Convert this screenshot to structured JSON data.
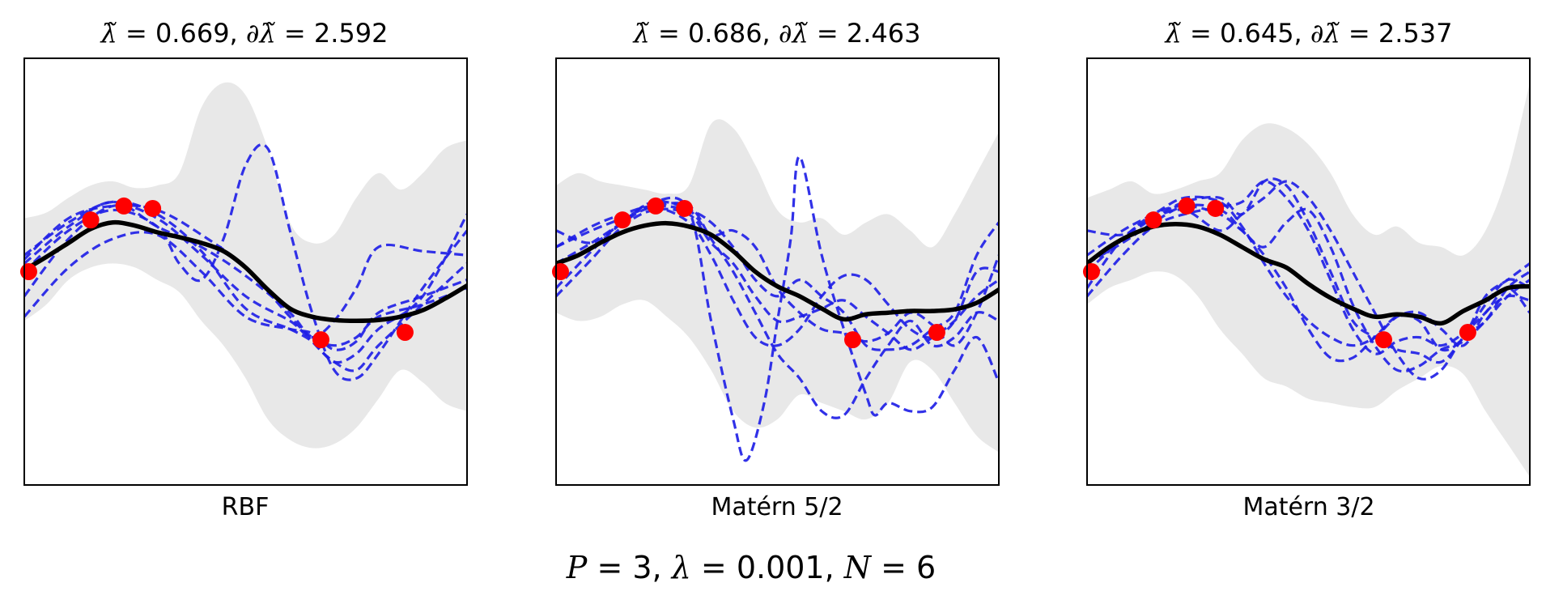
{
  "figure": {
    "suptitle": {
      "p_label": "P",
      "p_value": "3",
      "lambda_label": "λ",
      "lambda_value": "0.001",
      "n_label": "N",
      "n_value": "6"
    }
  },
  "colors": {
    "band": "#e8e8e8",
    "samples": "#2020e6",
    "mean": "#000000",
    "points": "#ff0000"
  },
  "chart_data": [
    {
      "type": "line",
      "title": {
        "lambda_tilde": "0.669",
        "partial_lambda_tilde": "2.592"
      },
      "xlabel": "RBF",
      "xlim": [
        0,
        1
      ],
      "ylim": [
        -2.6,
        2.6
      ],
      "grid": false,
      "observations": {
        "x": [
          0.01,
          0.15,
          0.225,
          0.29,
          0.67,
          0.86
        ],
        "y": [
          0.0,
          0.63,
          0.8,
          0.77,
          -0.83,
          -0.74
        ]
      },
      "mean": {
        "x": [
          0,
          0.05,
          0.1,
          0.15,
          0.2,
          0.25,
          0.3,
          0.35,
          0.4,
          0.45,
          0.5,
          0.55,
          0.6,
          0.65,
          0.7,
          0.75,
          0.8,
          0.85,
          0.9,
          0.95,
          1.0
        ],
        "y": [
          0.02,
          0.18,
          0.35,
          0.52,
          0.6,
          0.56,
          0.48,
          0.42,
          0.35,
          0.25,
          0.05,
          -0.22,
          -0.45,
          -0.55,
          -0.59,
          -0.6,
          -0.59,
          -0.55,
          -0.47,
          -0.33,
          -0.17
        ]
      },
      "band": {
        "x": [
          0,
          0.05,
          0.1,
          0.15,
          0.2,
          0.25,
          0.3,
          0.35,
          0.4,
          0.45,
          0.5,
          0.55,
          0.6,
          0.65,
          0.7,
          0.75,
          0.8,
          0.85,
          0.9,
          0.95,
          1.0
        ],
        "upper": [
          0.65,
          0.72,
          0.9,
          1.05,
          1.1,
          1.02,
          1.05,
          1.2,
          2.0,
          2.3,
          2.15,
          1.5,
          0.6,
          0.35,
          0.45,
          0.9,
          1.2,
          1.0,
          1.2,
          1.5,
          1.6
        ],
        "lower": [
          -0.6,
          -0.4,
          -0.1,
          0.05,
          0.1,
          0.05,
          -0.1,
          -0.25,
          -0.6,
          -0.9,
          -1.3,
          -1.8,
          -2.05,
          -2.15,
          -2.1,
          -1.9,
          -1.55,
          -1.2,
          -1.35,
          -1.6,
          -1.7
        ]
      },
      "samples": [
        {
          "x": [
            0,
            0.1,
            0.2,
            0.3,
            0.35,
            0.4,
            0.45,
            0.5,
            0.55,
            0.6,
            0.65,
            0.7,
            0.75,
            0.8,
            0.9,
            1.0
          ],
          "y": [
            0.0,
            0.5,
            0.75,
            0.55,
            0.1,
            -0.1,
            0.4,
            1.3,
            1.5,
            0.5,
            -0.5,
            -1.2,
            -1.3,
            -1.0,
            -0.2,
            0.5
          ]
        },
        {
          "x": [
            0,
            0.1,
            0.2,
            0.3,
            0.4,
            0.5,
            0.6,
            0.65,
            0.7,
            0.75,
            0.8,
            0.9,
            1.0
          ],
          "y": [
            0.1,
            0.55,
            0.85,
            0.55,
            0.3,
            -0.05,
            -0.5,
            -0.85,
            -1.1,
            -1.2,
            -0.9,
            -0.4,
            0.1
          ]
        },
        {
          "x": [
            0,
            0.1,
            0.2,
            0.3,
            0.4,
            0.5,
            0.6,
            0.65,
            0.7,
            0.75,
            0.8,
            0.9,
            1.0
          ],
          "y": [
            -0.3,
            0.4,
            0.8,
            0.65,
            0.2,
            -0.3,
            -0.6,
            -0.8,
            -0.6,
            -0.2,
            0.3,
            0.25,
            0.2
          ]
        },
        {
          "x": [
            0,
            0.1,
            0.2,
            0.3,
            0.4,
            0.5,
            0.6,
            0.65,
            0.7,
            0.75,
            0.8,
            0.9,
            1.0
          ],
          "y": [
            0.2,
            0.6,
            0.85,
            0.7,
            0.25,
            -0.45,
            -0.7,
            -0.85,
            -1.1,
            -1.0,
            -0.7,
            -0.3,
            0.7
          ]
        },
        {
          "x": [
            0,
            0.1,
            0.2,
            0.3,
            0.4,
            0.5,
            0.6,
            0.65,
            0.7,
            0.75,
            0.8,
            0.9,
            1.0
          ],
          "y": [
            -0.55,
            0.05,
            0.4,
            0.45,
            0.0,
            -0.55,
            -0.7,
            -0.75,
            -0.95,
            -0.85,
            -0.5,
            -0.3,
            -0.1
          ]
        },
        {
          "x": [
            0,
            0.1,
            0.2,
            0.3,
            0.4,
            0.5,
            0.6,
            0.65,
            0.7,
            0.75,
            0.8,
            0.9,
            1.0
          ],
          "y": [
            0.15,
            0.65,
            0.8,
            0.75,
            0.45,
            0.05,
            -0.55,
            -0.8,
            -0.9,
            -0.8,
            -0.55,
            -0.4,
            -0.2
          ]
        }
      ]
    },
    {
      "type": "line",
      "title": {
        "lambda_tilde": "0.686",
        "partial_lambda_tilde": "2.463"
      },
      "xlabel": "Matérn 5/2",
      "xlim": [
        0,
        1
      ],
      "ylim": [
        -2.6,
        2.6
      ],
      "grid": false,
      "observations": {
        "x": [
          0.01,
          0.15,
          0.225,
          0.29,
          0.67,
          0.86
        ],
        "y": [
          0.0,
          0.63,
          0.8,
          0.77,
          -0.83,
          -0.74
        ]
      },
      "mean": {
        "x": [
          0,
          0.05,
          0.1,
          0.15,
          0.2,
          0.25,
          0.3,
          0.35,
          0.4,
          0.45,
          0.5,
          0.55,
          0.6,
          0.65,
          0.7,
          0.75,
          0.8,
          0.85,
          0.9,
          0.95,
          1.0
        ],
        "y": [
          0.1,
          0.2,
          0.35,
          0.48,
          0.56,
          0.59,
          0.55,
          0.45,
          0.25,
          0.0,
          -0.18,
          -0.3,
          -0.45,
          -0.58,
          -0.52,
          -0.5,
          -0.48,
          -0.48,
          -0.46,
          -0.38,
          -0.22
        ]
      },
      "band": {
        "x": [
          0,
          0.05,
          0.1,
          0.15,
          0.2,
          0.25,
          0.3,
          0.35,
          0.4,
          0.45,
          0.5,
          0.55,
          0.6,
          0.65,
          0.7,
          0.75,
          0.8,
          0.85,
          0.9,
          0.95,
          1.0
        ],
        "upper": [
          1.05,
          1.2,
          1.1,
          1.05,
          1.0,
          0.95,
          1.05,
          1.8,
          1.75,
          1.3,
          0.75,
          0.6,
          0.65,
          0.45,
          0.6,
          0.7,
          0.5,
          0.3,
          0.7,
          1.2,
          1.7
        ],
        "lower": [
          -0.5,
          -0.6,
          -0.55,
          -0.4,
          -0.35,
          -0.55,
          -0.8,
          -1.2,
          -1.7,
          -1.9,
          -1.8,
          -1.5,
          -1.6,
          -1.7,
          -1.8,
          -1.6,
          -1.1,
          -1.2,
          -1.6,
          -2.0,
          -2.2
        ]
      },
      "samples": [
        {
          "x": [
            0,
            0.08,
            0.15,
            0.22,
            0.3,
            0.35,
            0.4,
            0.43,
            0.47,
            0.5,
            0.53,
            0.55,
            0.6,
            0.65,
            0.7,
            0.72,
            0.75,
            0.8,
            0.85,
            0.9,
            0.95,
            1.0
          ],
          "y": [
            0.1,
            0.35,
            0.6,
            0.85,
            0.75,
            -0.6,
            -1.8,
            -2.3,
            -1.6,
            -0.6,
            0.4,
            1.4,
            0.2,
            -0.7,
            -1.5,
            -1.75,
            -1.6,
            -1.7,
            -1.65,
            -1.2,
            -0.8,
            -1.35
          ]
        },
        {
          "x": [
            0,
            0.08,
            0.15,
            0.22,
            0.3,
            0.35,
            0.4,
            0.45,
            0.5,
            0.55,
            0.6,
            0.65,
            0.7,
            0.75,
            0.8,
            0.85,
            0.9,
            0.95,
            1.0
          ],
          "y": [
            0.3,
            0.5,
            0.65,
            0.8,
            0.8,
            0.4,
            0.0,
            -0.5,
            -1.0,
            -1.3,
            -1.7,
            -1.75,
            -1.3,
            -0.9,
            -0.6,
            -0.9,
            -0.8,
            -0.5,
            -0.6
          ]
        },
        {
          "x": [
            0,
            0.08,
            0.15,
            0.22,
            0.3,
            0.35,
            0.4,
            0.45,
            0.5,
            0.55,
            0.6,
            0.65,
            0.7,
            0.75,
            0.8,
            0.85,
            0.9,
            0.95,
            1.0
          ],
          "y": [
            -0.2,
            0.25,
            0.6,
            0.85,
            0.75,
            0.45,
            0.5,
            0.3,
            -0.2,
            -0.5,
            -0.7,
            -0.75,
            -0.85,
            -0.75,
            -0.5,
            -0.65,
            -0.9,
            -0.5,
            0.2
          ]
        },
        {
          "x": [
            0,
            0.08,
            0.15,
            0.22,
            0.3,
            0.35,
            0.4,
            0.45,
            0.5,
            0.55,
            0.6,
            0.65,
            0.7,
            0.75,
            0.8,
            0.85,
            0.9,
            0.95,
            1.0
          ],
          "y": [
            0.3,
            0.55,
            0.7,
            0.8,
            0.75,
            0.6,
            0.3,
            -0.1,
            -0.3,
            -0.1,
            -0.3,
            -0.5,
            -0.9,
            -0.95,
            -0.9,
            -0.7,
            -0.5,
            0.2,
            0.6
          ]
        },
        {
          "x": [
            0,
            0.08,
            0.15,
            0.22,
            0.3,
            0.35,
            0.4,
            0.45,
            0.5,
            0.55,
            0.6,
            0.65,
            0.7,
            0.75,
            0.8,
            0.85,
            0.9,
            0.95,
            1.0
          ],
          "y": [
            -0.3,
            0.15,
            0.55,
            0.75,
            0.7,
            0.35,
            0.1,
            -0.3,
            -0.6,
            -0.55,
            -0.45,
            -0.35,
            -0.55,
            -0.75,
            -0.95,
            -0.8,
            -0.6,
            -0.3,
            -0.1
          ]
        },
        {
          "x": [
            0,
            0.08,
            0.15,
            0.22,
            0.3,
            0.35,
            0.4,
            0.45,
            0.5,
            0.55,
            0.6,
            0.65,
            0.7,
            0.75,
            0.8,
            0.85,
            0.9,
            0.95,
            1.0
          ],
          "y": [
            0.5,
            0.35,
            0.6,
            0.78,
            0.6,
            0.2,
            -0.35,
            -0.8,
            -0.9,
            -0.7,
            -0.3,
            -0.05,
            -0.1,
            -0.4,
            -0.7,
            -0.8,
            -0.6,
            0.0,
            0.0
          ]
        }
      ]
    },
    {
      "type": "line",
      "title": {
        "lambda_tilde": "0.645",
        "partial_lambda_tilde": "2.537"
      },
      "xlabel": "Matérn 3/2",
      "xlim": [
        0,
        1
      ],
      "ylim": [
        -2.6,
        2.6
      ],
      "grid": false,
      "observations": {
        "x": [
          0.01,
          0.15,
          0.225,
          0.29,
          0.67,
          0.86
        ],
        "y": [
          0.0,
          0.63,
          0.8,
          0.77,
          -0.83,
          -0.74
        ]
      },
      "mean": {
        "x": [
          0,
          0.05,
          0.1,
          0.15,
          0.2,
          0.25,
          0.3,
          0.35,
          0.4,
          0.45,
          0.5,
          0.55,
          0.6,
          0.65,
          0.7,
          0.75,
          0.8,
          0.85,
          0.9,
          0.95,
          1.0
        ],
        "y": [
          0.1,
          0.3,
          0.45,
          0.55,
          0.58,
          0.55,
          0.45,
          0.3,
          0.15,
          0.05,
          -0.15,
          -0.32,
          -0.45,
          -0.55,
          -0.52,
          -0.55,
          -0.63,
          -0.48,
          -0.35,
          -0.2,
          -0.18
        ]
      },
      "band": {
        "x": [
          0,
          0.05,
          0.1,
          0.15,
          0.2,
          0.25,
          0.3,
          0.35,
          0.4,
          0.45,
          0.5,
          0.55,
          0.6,
          0.65,
          0.7,
          0.75,
          0.8,
          0.85,
          0.9,
          0.95,
          1.0
        ],
        "upper": [
          0.9,
          1.0,
          1.1,
          0.95,
          1.0,
          1.1,
          1.2,
          1.6,
          1.8,
          1.75,
          1.55,
          1.2,
          0.7,
          0.45,
          0.55,
          0.35,
          0.3,
          0.2,
          0.5,
          1.2,
          2.3
        ],
        "lower": [
          -0.4,
          -0.2,
          -0.1,
          0.0,
          -0.05,
          -0.3,
          -0.7,
          -1.0,
          -1.3,
          -1.4,
          -1.55,
          -1.6,
          -1.65,
          -1.65,
          -1.45,
          -1.3,
          -1.15,
          -1.25,
          -1.7,
          -2.1,
          -2.5
        ]
      },
      "samples": [
        {
          "x": [
            0,
            0.08,
            0.15,
            0.22,
            0.3,
            0.35,
            0.4,
            0.45,
            0.5,
            0.55,
            0.6,
            0.65,
            0.7,
            0.75,
            0.8,
            0.85,
            0.9,
            0.95,
            1.0
          ],
          "y": [
            0.5,
            0.45,
            0.65,
            0.85,
            0.9,
            0.7,
            1.1,
            1.05,
            0.6,
            0.0,
            -0.6,
            -0.8,
            -0.95,
            -1.0,
            -1.1,
            -0.8,
            -0.4,
            -0.1,
            -0.2
          ]
        },
        {
          "x": [
            0,
            0.08,
            0.15,
            0.22,
            0.3,
            0.35,
            0.4,
            0.45,
            0.5,
            0.55,
            0.6,
            0.65,
            0.7,
            0.75,
            0.8,
            0.85,
            0.9,
            0.95,
            1.0
          ],
          "y": [
            0.1,
            0.35,
            0.6,
            0.8,
            0.8,
            0.85,
            1.1,
            0.9,
            0.5,
            -0.1,
            -0.7,
            -1.0,
            -0.85,
            -0.8,
            -0.9,
            -0.75,
            -0.5,
            -0.2,
            -0.5
          ]
        },
        {
          "x": [
            0,
            0.08,
            0.15,
            0.22,
            0.3,
            0.35,
            0.4,
            0.45,
            0.5,
            0.55,
            0.6,
            0.65,
            0.7,
            0.75,
            0.8,
            0.85,
            0.9,
            0.95,
            1.0
          ],
          "y": [
            -0.2,
            0.4,
            0.65,
            0.75,
            0.5,
            0.7,
            0.9,
            1.1,
            0.9,
            0.5,
            0.0,
            -0.5,
            -1.0,
            -1.3,
            -1.2,
            -0.8,
            -0.6,
            -0.2,
            0.0
          ]
        },
        {
          "x": [
            0,
            0.08,
            0.15,
            0.22,
            0.3,
            0.35,
            0.4,
            0.45,
            0.5,
            0.55,
            0.6,
            0.65,
            0.7,
            0.75,
            0.8,
            0.85,
            0.9,
            0.95,
            1.0
          ],
          "y": [
            0.2,
            0.5,
            0.7,
            0.9,
            0.85,
            0.55,
            0.1,
            -0.3,
            -0.6,
            -0.8,
            -0.9,
            -0.8,
            -0.55,
            -0.5,
            -0.7,
            -0.9,
            -0.5,
            -0.3,
            -0.35
          ]
        },
        {
          "x": [
            0,
            0.08,
            0.15,
            0.22,
            0.3,
            0.35,
            0.4,
            0.45,
            0.5,
            0.55,
            0.6,
            0.65,
            0.7,
            0.75,
            0.8,
            0.85,
            0.9,
            0.95,
            1.0
          ],
          "y": [
            0.0,
            0.4,
            0.7,
            0.8,
            0.7,
            0.5,
            0.3,
            0.6,
            0.75,
            0.3,
            -0.4,
            -0.9,
            -1.2,
            -1.15,
            -0.95,
            -0.85,
            -0.6,
            -0.3,
            -0.1
          ]
        },
        {
          "x": [
            0,
            0.08,
            0.15,
            0.22,
            0.3,
            0.35,
            0.4,
            0.45,
            0.5,
            0.55,
            0.6,
            0.65,
            0.7,
            0.75,
            0.8,
            0.85,
            0.9,
            0.95,
            1.0
          ],
          "y": [
            -0.3,
            0.2,
            0.55,
            0.7,
            0.75,
            0.5,
            0.2,
            -0.2,
            -0.7,
            -1.05,
            -1.05,
            -0.8,
            -0.55,
            -0.6,
            -0.95,
            -0.8,
            -0.3,
            -0.1,
            0.1
          ]
        }
      ]
    }
  ]
}
